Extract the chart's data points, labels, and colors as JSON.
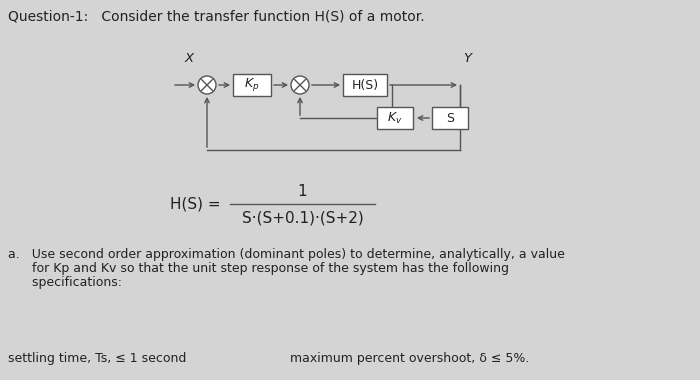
{
  "bg_color": "#d4d4d4",
  "title_line": "Question-1:   Consider the transfer function H(S) of a motor.",
  "title_fontsize": 10,
  "formula_numerator": "1",
  "formula_denominator": "S·(S+0.1)·(S+2)",
  "formula_prefix": "H(S) = ",
  "part_a_line1": "a.   Use second order approximation (dominant poles) to determine, analytically, a value",
  "part_a_line2": "      for Kp and Kv so that the unit step response of the system has the following",
  "part_a_line3": "      specifications:",
  "bottom_left": "settling time, Ts, ≤ 1 second",
  "bottom_right": "maximum percent overshoot, δ ≤ 5%.",
  "block_Kp": "$K_p$",
  "block_HS": "H(S)",
  "block_Kv": "$K_v$",
  "block_S": "S",
  "label_X": "X",
  "label_Y": "Y",
  "line_color": "#555555",
  "box_edge_color": "#555555",
  "text_color": "#222222"
}
